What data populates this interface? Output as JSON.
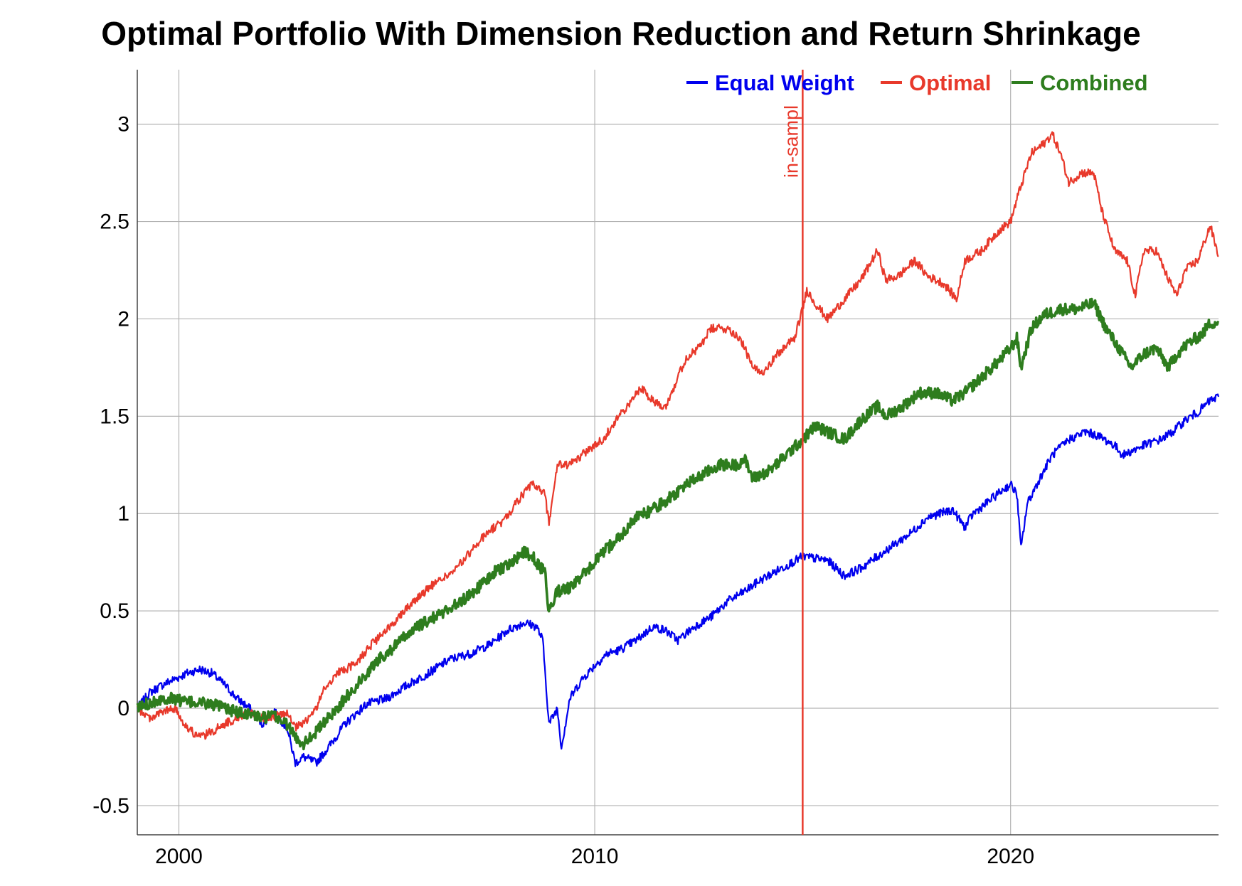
{
  "chart_data": {
    "type": "line",
    "title": "Optimal Portfolio With Dimension Reduction and Return Shrinkage",
    "xlabel": "",
    "ylabel": "",
    "xlim": [
      1999.0,
      2025.0
    ],
    "ylim": [
      -0.65,
      3.28
    ],
    "x_ticks": [
      2000,
      2010,
      2020
    ],
    "x_tick_labels": [
      "2000",
      "2010",
      "2020"
    ],
    "y_ticks": [
      -0.5,
      0,
      0.5,
      1,
      1.5,
      2,
      2.5,
      3
    ],
    "y_tick_labels": [
      "-0.5",
      "0",
      "0.5",
      "1",
      "1.5",
      "2",
      "2.5",
      "3"
    ],
    "grid": true,
    "legend_position": "top-right",
    "annotation": {
      "label": "in-sampl",
      "x": 2015.0,
      "color": "#e8392b"
    },
    "series": [
      {
        "name": "Equal Weight",
        "color": "#0000ee",
        "x": [
          1999.0,
          1999.3,
          1999.6,
          1999.9,
          2000.2,
          2000.5,
          2000.8,
          2001.1,
          2001.4,
          2001.7,
          2002.0,
          2002.3,
          2002.6,
          2002.8,
          2003.0,
          2003.3,
          2003.6,
          2004.0,
          2004.5,
          2005.0,
          2005.5,
          2006.0,
          2006.5,
          2007.0,
          2007.5,
          2007.9,
          2008.3,
          2008.6,
          2008.75,
          2008.9,
          2009.1,
          2009.2,
          2009.4,
          2009.7,
          2010.0,
          2010.3,
          2010.6,
          2011.0,
          2011.4,
          2011.7,
          2012.0,
          2012.4,
          2012.8,
          2013.2,
          2013.6,
          2014.0,
          2014.5,
          2015.0,
          2015.3,
          2015.6,
          2016.0,
          2016.4,
          2016.8,
          2017.2,
          2017.6,
          2018.0,
          2018.3,
          2018.6,
          2018.9,
          2019.1,
          2019.4,
          2019.8,
          2020.0,
          2020.15,
          2020.25,
          2020.4,
          2020.7,
          2021.0,
          2021.4,
          2021.8,
          2022.1,
          2022.5,
          2022.7,
          2022.9,
          2023.2,
          2023.6,
          2023.9,
          2024.2,
          2024.5,
          2024.8,
          2025.0
        ],
        "values": [
          0.0,
          0.08,
          0.12,
          0.15,
          0.18,
          0.2,
          0.18,
          0.12,
          0.05,
          0.0,
          -0.08,
          -0.02,
          -0.1,
          -0.28,
          -0.25,
          -0.28,
          -0.2,
          -0.08,
          0.02,
          0.05,
          0.12,
          0.18,
          0.25,
          0.28,
          0.33,
          0.4,
          0.44,
          0.42,
          0.35,
          -0.08,
          0.0,
          -0.2,
          0.05,
          0.15,
          0.22,
          0.28,
          0.3,
          0.35,
          0.42,
          0.4,
          0.35,
          0.42,
          0.47,
          0.55,
          0.6,
          0.66,
          0.72,
          0.78,
          0.77,
          0.76,
          0.68,
          0.72,
          0.78,
          0.84,
          0.9,
          0.98,
          1.0,
          1.02,
          0.93,
          1.0,
          1.05,
          1.12,
          1.15,
          1.1,
          0.82,
          1.05,
          1.18,
          1.3,
          1.38,
          1.42,
          1.4,
          1.35,
          1.3,
          1.32,
          1.35,
          1.38,
          1.42,
          1.48,
          1.52,
          1.58,
          1.6
        ]
      },
      {
        "name": "Optimal",
        "color": "#e8392b",
        "x": [
          1999.0,
          1999.3,
          1999.6,
          1999.9,
          2000.2,
          2000.5,
          2000.8,
          2001.1,
          2001.4,
          2001.7,
          2002.0,
          2002.3,
          2002.6,
          2002.8,
          2003.0,
          2003.3,
          2003.5,
          2003.8,
          2004.2,
          2004.6,
          2005.0,
          2005.4,
          2005.8,
          2006.2,
          2006.6,
          2007.0,
          2007.4,
          2007.8,
          2008.2,
          2008.5,
          2008.7,
          2008.8,
          2008.9,
          2009.1,
          2009.4,
          2009.8,
          2010.2,
          2010.5,
          2010.8,
          2011.1,
          2011.4,
          2011.7,
          2011.9,
          2012.2,
          2012.5,
          2012.8,
          2013.2,
          2013.5,
          2013.8,
          2014.0,
          2014.4,
          2014.8,
          2015.0,
          2015.1,
          2015.3,
          2015.6,
          2016.0,
          2016.4,
          2016.8,
          2017.0,
          2017.3,
          2017.7,
          2018.0,
          2018.4,
          2018.7,
          2018.9,
          2019.3,
          2019.7,
          2020.0,
          2020.2,
          2020.5,
          2020.8,
          2021.0,
          2021.2,
          2021.4,
          2021.7,
          2022.0,
          2022.2,
          2022.5,
          2022.8,
          2023.0,
          2023.2,
          2023.5,
          2023.8,
          2024.0,
          2024.2,
          2024.5,
          2024.8,
          2025.0
        ],
        "values": [
          0.0,
          -0.05,
          -0.02,
          0.0,
          -0.1,
          -0.15,
          -0.12,
          -0.08,
          -0.05,
          -0.02,
          -0.05,
          -0.04,
          -0.03,
          -0.1,
          -0.08,
          0.0,
          0.1,
          0.18,
          0.22,
          0.32,
          0.4,
          0.5,
          0.58,
          0.65,
          0.7,
          0.8,
          0.9,
          0.96,
          1.08,
          1.15,
          1.12,
          1.1,
          0.95,
          1.25,
          1.25,
          1.32,
          1.38,
          1.48,
          1.55,
          1.65,
          1.58,
          1.55,
          1.65,
          1.8,
          1.85,
          1.95,
          1.95,
          1.9,
          1.75,
          1.72,
          1.82,
          1.9,
          2.05,
          2.15,
          2.08,
          2.0,
          2.1,
          2.2,
          2.35,
          2.2,
          2.22,
          2.3,
          2.22,
          2.18,
          2.1,
          2.3,
          2.35,
          2.45,
          2.5,
          2.65,
          2.85,
          2.9,
          2.95,
          2.85,
          2.7,
          2.75,
          2.75,
          2.55,
          2.35,
          2.3,
          2.12,
          2.35,
          2.35,
          2.2,
          2.12,
          2.25,
          2.3,
          2.48,
          2.32
        ]
      },
      {
        "name": "Combined",
        "color": "#2e7d1e",
        "x": [
          1999.0,
          1999.3,
          1999.6,
          1999.9,
          2000.2,
          2000.5,
          2000.8,
          2001.1,
          2001.4,
          2001.7,
          2002.0,
          2002.3,
          2002.6,
          2002.8,
          2003.0,
          2003.3,
          2003.6,
          2004.0,
          2004.4,
          2004.8,
          2005.2,
          2005.6,
          2006.0,
          2006.4,
          2006.8,
          2007.2,
          2007.6,
          2008.0,
          2008.3,
          2008.5,
          2008.7,
          2008.8,
          2008.9,
          2009.1,
          2009.4,
          2009.8,
          2010.2,
          2010.6,
          2011.0,
          2011.4,
          2011.8,
          2012.2,
          2012.6,
          2013.0,
          2013.4,
          2013.6,
          2013.8,
          2014.2,
          2014.6,
          2015.0,
          2015.3,
          2015.6,
          2016.0,
          2016.4,
          2016.8,
          2017.0,
          2017.4,
          2017.8,
          2018.2,
          2018.6,
          2018.9,
          2019.3,
          2019.7,
          2020.0,
          2020.15,
          2020.25,
          2020.5,
          2020.8,
          2021.2,
          2021.6,
          2022.0,
          2022.3,
          2022.6,
          2022.9,
          2023.2,
          2023.5,
          2023.8,
          2024.0,
          2024.3,
          2024.6,
          2024.8,
          2025.0
        ],
        "values": [
          0.0,
          0.03,
          0.05,
          0.05,
          0.03,
          0.03,
          0.02,
          0.0,
          -0.02,
          -0.03,
          -0.05,
          -0.04,
          -0.08,
          -0.15,
          -0.18,
          -0.12,
          -0.05,
          0.05,
          0.15,
          0.25,
          0.32,
          0.4,
          0.45,
          0.5,
          0.55,
          0.62,
          0.7,
          0.75,
          0.8,
          0.78,
          0.72,
          0.7,
          0.5,
          0.6,
          0.62,
          0.7,
          0.8,
          0.88,
          0.98,
          1.02,
          1.08,
          1.15,
          1.2,
          1.25,
          1.25,
          1.28,
          1.18,
          1.22,
          1.3,
          1.38,
          1.45,
          1.42,
          1.38,
          1.48,
          1.55,
          1.5,
          1.55,
          1.62,
          1.62,
          1.58,
          1.62,
          1.7,
          1.78,
          1.85,
          1.9,
          1.75,
          1.95,
          2.02,
          2.05,
          2.05,
          2.08,
          1.95,
          1.85,
          1.75,
          1.82,
          1.85,
          1.75,
          1.82,
          1.88,
          1.92,
          1.98,
          1.98
        ]
      }
    ]
  }
}
